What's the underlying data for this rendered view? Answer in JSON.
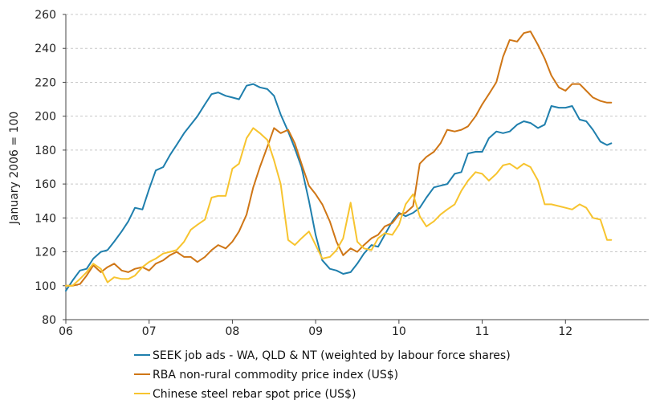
{
  "chart_data": {
    "type": "line",
    "ylabel": "January 2006 = 100",
    "xlabel": "",
    "title": "",
    "ylim": [
      80,
      260
    ],
    "yticks": [
      80,
      100,
      120,
      140,
      160,
      180,
      200,
      220,
      240,
      260
    ],
    "xlim": [
      2006.0,
      2013.0
    ],
    "xticks": [
      {
        "value": 2006,
        "label": "06"
      },
      {
        "value": 2007,
        "label": "07"
      },
      {
        "value": 2008,
        "label": "08"
      },
      {
        "value": 2009,
        "label": "09"
      },
      {
        "value": 2010,
        "label": "10"
      },
      {
        "value": 2011,
        "label": "11"
      },
      {
        "value": 2012,
        "label": "12"
      }
    ],
    "grid": "horizontal dashed",
    "legend_position": "bottom",
    "series": [
      {
        "name": "SEEK job ads - WA, QLD & NT (weighted by labour force shares)",
        "color": "#1f7fad",
        "x": [
          2006.0,
          2006.08,
          2006.17,
          2006.25,
          2006.33,
          2006.42,
          2006.5,
          2006.58,
          2006.67,
          2006.75,
          2006.83,
          2006.92,
          2007.0,
          2007.08,
          2007.17,
          2007.25,
          2007.33,
          2007.42,
          2007.5,
          2007.58,
          2007.67,
          2007.75,
          2007.83,
          2007.92,
          2008.0,
          2008.08,
          2008.17,
          2008.25,
          2008.33,
          2008.42,
          2008.5,
          2008.58,
          2008.67,
          2008.75,
          2008.83,
          2008.92,
          2009.0,
          2009.08,
          2009.17,
          2009.25,
          2009.33,
          2009.42,
          2009.5,
          2009.58,
          2009.67,
          2009.75,
          2009.83,
          2009.92,
          2010.0,
          2010.08,
          2010.17,
          2010.25,
          2010.33,
          2010.42,
          2010.5,
          2010.58,
          2010.67,
          2010.75,
          2010.83,
          2010.92,
          2011.0,
          2011.08,
          2011.17,
          2011.25,
          2011.33,
          2011.42,
          2011.5,
          2011.58,
          2011.67,
          2011.75,
          2011.83,
          2011.92,
          2012.0,
          2012.08,
          2012.17,
          2012.25,
          2012.33,
          2012.42,
          2012.5,
          2012.55
        ],
        "values": [
          97,
          103,
          109,
          110,
          116,
          120,
          121,
          126,
          132,
          138,
          146,
          145,
          157,
          168,
          170,
          177,
          183,
          190,
          195,
          200,
          207,
          213,
          214,
          212,
          211,
          210,
          218,
          219,
          217,
          216,
          212,
          201,
          191,
          181,
          170,
          150,
          130,
          115,
          110,
          109,
          107,
          108,
          113,
          119,
          124,
          123,
          130,
          138,
          143,
          141,
          143,
          146,
          152,
          158,
          159,
          160,
          166,
          167,
          178,
          179,
          179,
          187,
          191,
          190,
          191,
          195,
          197,
          196,
          193,
          195,
          206,
          205,
          205,
          206,
          198,
          197,
          192,
          185,
          183,
          184
        ],
        "display_values": [
          97,
          103,
          109,
          110,
          116,
          120,
          121,
          126,
          132,
          138,
          146,
          145,
          157,
          168,
          170,
          177,
          183,
          190,
          195,
          200,
          207,
          213,
          214,
          212,
          211,
          210,
          218,
          219,
          217,
          216,
          212,
          201,
          191,
          181,
          170,
          150,
          130,
          115,
          110,
          109,
          107,
          108,
          113,
          119,
          124,
          123,
          130,
          138,
          143,
          141,
          143,
          146,
          152,
          158,
          159,
          160,
          166,
          167,
          178,
          179,
          179,
          187,
          191,
          190,
          191,
          195,
          197,
          196,
          193,
          195,
          206,
          205,
          205,
          206,
          198,
          197,
          192,
          185,
          183,
          184
        ]
      },
      {
        "name": "RBA non-rural commodity price index (US$)",
        "color": "#cf7616",
        "x": [
          2006.0,
          2006.08,
          2006.17,
          2006.25,
          2006.33,
          2006.42,
          2006.5,
          2006.58,
          2006.67,
          2006.75,
          2006.83,
          2006.92,
          2007.0,
          2007.08,
          2007.17,
          2007.25,
          2007.33,
          2007.42,
          2007.5,
          2007.58,
          2007.67,
          2007.75,
          2007.83,
          2007.92,
          2008.0,
          2008.08,
          2008.17,
          2008.25,
          2008.33,
          2008.42,
          2008.5,
          2008.58,
          2008.67,
          2008.75,
          2008.83,
          2008.92,
          2009.0,
          2009.08,
          2009.17,
          2009.25,
          2009.33,
          2009.42,
          2009.5,
          2009.58,
          2009.67,
          2009.75,
          2009.83,
          2009.92,
          2010.0,
          2010.08,
          2010.17,
          2010.25,
          2010.33,
          2010.42,
          2010.5,
          2010.58,
          2010.67,
          2010.75,
          2010.83,
          2010.92,
          2011.0,
          2011.08,
          2011.17,
          2011.25,
          2011.33,
          2011.42,
          2011.5,
          2011.58,
          2011.67,
          2011.75,
          2011.83,
          2011.92,
          2012.0,
          2012.08,
          2012.17,
          2012.25,
          2012.33,
          2012.42,
          2012.5,
          2012.55
        ],
        "values": [
          100,
          100,
          101,
          106,
          112,
          108,
          111,
          113,
          109,
          108,
          110,
          111,
          109,
          113,
          115,
          118,
          120,
          117,
          117,
          114,
          117,
          121,
          124,
          122,
          126,
          132,
          142,
          158,
          170,
          182,
          193,
          190,
          192,
          184,
          172,
          159,
          154,
          148,
          138,
          126,
          118,
          122,
          120,
          124,
          128,
          130,
          135,
          137,
          142,
          143,
          147,
          172,
          176,
          179,
          184,
          192,
          191,
          192,
          194,
          200,
          207,
          213,
          220,
          235,
          245,
          244,
          249,
          250,
          242,
          234,
          224,
          217,
          215,
          219,
          219,
          215,
          211,
          209,
          208,
          208
        ],
        "display_values": [
          100,
          100,
          101,
          106,
          112,
          108,
          111,
          113,
          109,
          108,
          110,
          111,
          109,
          113,
          115,
          118,
          120,
          117,
          117,
          114,
          117,
          121,
          124,
          122,
          126,
          132,
          142,
          158,
          170,
          182,
          193,
          190,
          192,
          184,
          172,
          159,
          154,
          148,
          138,
          126,
          118,
          122,
          120,
          124,
          128,
          130,
          135,
          137,
          142,
          143,
          147,
          172,
          176,
          179,
          184,
          192,
          191,
          192,
          194,
          200,
          207,
          213,
          220,
          235,
          245,
          244,
          249,
          250,
          242,
          234,
          224,
          217,
          215,
          219,
          219,
          215,
          211,
          209,
          208,
          208
        ]
      },
      {
        "name": "Chinese steel rebar spot price (US$)",
        "color": "#f7c42f",
        "x": [
          2006.0,
          2006.08,
          2006.17,
          2006.25,
          2006.33,
          2006.42,
          2006.5,
          2006.58,
          2006.67,
          2006.75,
          2006.83,
          2006.92,
          2007.0,
          2007.08,
          2007.17,
          2007.25,
          2007.33,
          2007.42,
          2007.5,
          2007.58,
          2007.67,
          2007.75,
          2007.83,
          2007.92,
          2008.0,
          2008.08,
          2008.17,
          2008.25,
          2008.33,
          2008.42,
          2008.5,
          2008.58,
          2008.67,
          2008.75,
          2008.83,
          2008.92,
          2009.0,
          2009.08,
          2009.17,
          2009.25,
          2009.33,
          2009.42,
          2009.5,
          2009.58,
          2009.67,
          2009.75,
          2009.83,
          2009.92,
          2010.0,
          2010.08,
          2010.17,
          2010.25,
          2010.33,
          2010.42,
          2010.5,
          2010.58,
          2010.67,
          2010.75,
          2010.83,
          2010.92,
          2011.0,
          2011.08,
          2011.17,
          2011.25,
          2011.33,
          2011.42,
          2011.5,
          2011.58,
          2011.67,
          2011.75,
          2011.83,
          2011.92,
          2012.0,
          2012.08,
          2012.17,
          2012.25,
          2012.33,
          2012.42,
          2012.5,
          2012.55
        ],
        "values": [
          100,
          100,
          104,
          108,
          113,
          110,
          102,
          105,
          104,
          104,
          106,
          111,
          114,
          116,
          119,
          120,
          121,
          126,
          133,
          136,
          139,
          152,
          153,
          153,
          169,
          172,
          187,
          193,
          190,
          186,
          174,
          160,
          127,
          124,
          128,
          132,
          124,
          116,
          117,
          121,
          128,
          149,
          126,
          122,
          121,
          128,
          131,
          130,
          136,
          148,
          154,
          141,
          135,
          138,
          142,
          145,
          148,
          156,
          162,
          167,
          166,
          162,
          166,
          171,
          172,
          169,
          172,
          170,
          162,
          148,
          148,
          147,
          146,
          145,
          148,
          146,
          140,
          139,
          127,
          127
        ],
        "display_values": [
          100,
          100,
          104,
          108,
          113,
          110,
          102,
          105,
          104,
          104,
          106,
          111,
          114,
          116,
          119,
          120,
          121,
          126,
          133,
          136,
          139,
          152,
          153,
          153,
          169,
          172,
          187,
          193,
          190,
          186,
          174,
          160,
          127,
          124,
          128,
          132,
          124,
          116,
          117,
          121,
          128,
          149,
          126,
          122,
          121,
          128,
          131,
          130,
          136,
          148,
          154,
          141,
          135,
          138,
          142,
          145,
          148,
          156,
          162,
          167,
          166,
          162,
          166,
          171,
          172,
          169,
          172,
          170,
          162,
          148,
          148,
          147,
          146,
          145,
          148,
          146,
          140,
          139,
          127,
          127
        ]
      }
    ]
  }
}
